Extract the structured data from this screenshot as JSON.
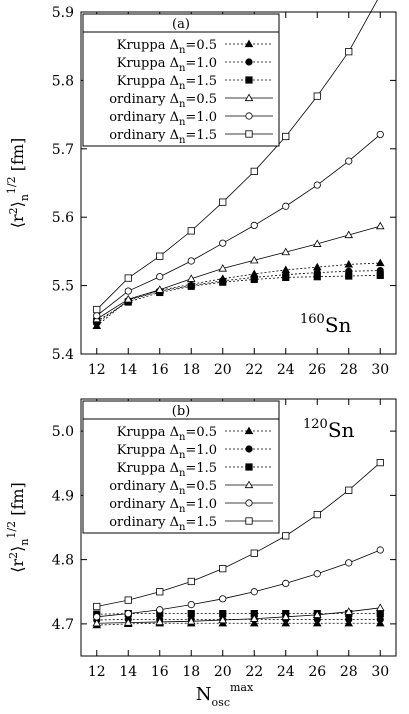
{
  "chart_data": [
    {
      "type": "line",
      "panel_label": "(a)",
      "nucleus_mass": "160",
      "nucleus_symbol": "Sn",
      "ylabel": "⟨r²⟩ₙ^{1/2} [fm]",
      "y_unit": "[fm]",
      "xlabel": "",
      "xlim": [
        11,
        31
      ],
      "ylim": [
        5.4,
        5.9
      ],
      "yticks": [
        5.4,
        5.5,
        5.6,
        5.7,
        5.8,
        5.9
      ],
      "x": [
        12,
        14,
        16,
        18,
        20,
        22,
        24,
        26,
        28,
        30
      ],
      "series": [
        {
          "name": "Kruppa Δn=0.5",
          "marker": "triangle-filled",
          "dashed": true,
          "values": [
            5.441,
            5.479,
            5.493,
            5.502,
            5.51,
            5.517,
            5.523,
            5.527,
            5.531,
            5.533
          ]
        },
        {
          "name": "Kruppa Δn=1.0",
          "marker": "circle-filled",
          "dashed": true,
          "values": [
            5.445,
            5.478,
            5.492,
            5.5,
            5.507,
            5.512,
            5.516,
            5.519,
            5.521,
            5.522
          ]
        },
        {
          "name": "Kruppa Δn=1.5",
          "marker": "square-filled",
          "dashed": true,
          "values": [
            5.448,
            5.476,
            5.49,
            5.499,
            5.505,
            5.509,
            5.512,
            5.513,
            5.514,
            5.515
          ]
        },
        {
          "name": "ordinary Δn=0.5",
          "marker": "triangle-open",
          "dashed": false,
          "values": [
            5.451,
            5.48,
            5.494,
            5.51,
            5.525,
            5.537,
            5.549,
            5.561,
            5.574,
            5.587
          ]
        },
        {
          "name": "ordinary Δn=1.0",
          "marker": "circle-open",
          "dashed": false,
          "values": [
            5.456,
            5.492,
            5.513,
            5.536,
            5.562,
            5.588,
            5.616,
            5.647,
            5.682,
            5.721
          ]
        },
        {
          "name": "ordinary Δn=1.5",
          "marker": "square-open",
          "dashed": false,
          "values": [
            5.465,
            5.511,
            5.543,
            5.58,
            5.622,
            5.667,
            5.718,
            5.777,
            5.842,
            5.925
          ]
        }
      ]
    },
    {
      "type": "line",
      "panel_label": "(b)",
      "nucleus_mass": "120",
      "nucleus_symbol": "Sn",
      "ylabel": "⟨r²⟩ₙ^{1/2} [fm]",
      "y_unit": "[fm]",
      "xlabel": "N_osc^max",
      "xlim": [
        11,
        31
      ],
      "ylim": [
        4.65,
        5.05
      ],
      "yticks": [
        4.7,
        4.8,
        4.9,
        5.0
      ],
      "x": [
        12,
        14,
        16,
        18,
        20,
        22,
        24,
        26,
        28,
        30
      ],
      "series": [
        {
          "name": "Kruppa Δn=0.5",
          "marker": "triangle-filled",
          "dashed": true,
          "values": [
            4.698,
            4.7,
            4.701,
            4.701,
            4.701,
            4.701,
            4.701,
            4.701,
            4.701,
            4.701
          ]
        },
        {
          "name": "Kruppa Δn=1.0",
          "marker": "circle-filled",
          "dashed": true,
          "values": [
            4.706,
            4.707,
            4.707,
            4.707,
            4.707,
            4.707,
            4.707,
            4.707,
            4.707,
            4.707
          ]
        },
        {
          "name": "Kruppa Δn=1.5",
          "marker": "square-filled",
          "dashed": true,
          "values": [
            4.715,
            4.716,
            4.716,
            4.716,
            4.716,
            4.716,
            4.716,
            4.716,
            4.716,
            4.716
          ]
        },
        {
          "name": "ordinary Δn=0.5",
          "marker": "triangle-open",
          "dashed": false,
          "values": [
            4.701,
            4.702,
            4.703,
            4.704,
            4.706,
            4.708,
            4.711,
            4.714,
            4.719,
            4.725
          ]
        },
        {
          "name": "ordinary Δn=1.0",
          "marker": "circle-open",
          "dashed": false,
          "values": [
            4.711,
            4.716,
            4.722,
            4.73,
            4.739,
            4.75,
            4.763,
            4.778,
            4.795,
            4.815
          ]
        },
        {
          "name": "ordinary Δn=1.5",
          "marker": "square-open",
          "dashed": false,
          "values": [
            4.727,
            4.737,
            4.75,
            4.766,
            4.786,
            4.81,
            4.837,
            4.87,
            4.908,
            4.951
          ]
        }
      ]
    }
  ]
}
